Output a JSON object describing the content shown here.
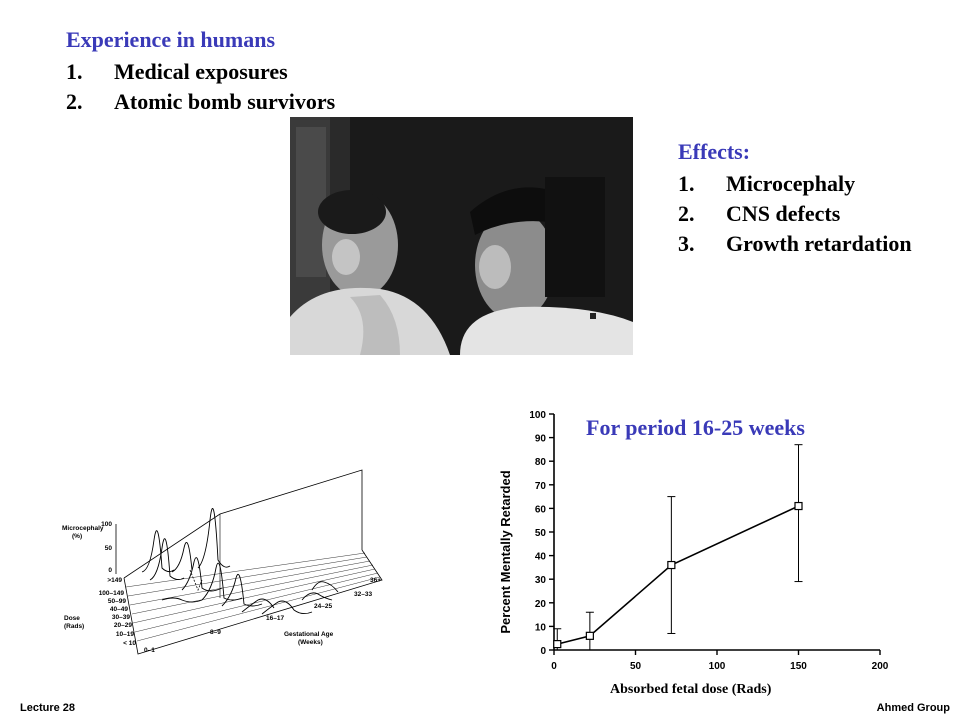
{
  "top": {
    "heading": "Experience in humans",
    "items": [
      {
        "num": "1.",
        "text": "Medical exposures"
      },
      {
        "num": "2.",
        "text": "Atomic bomb survivors"
      }
    ]
  },
  "effects": {
    "heading": "Effects:",
    "items": [
      {
        "num": "1.",
        "text": "Microcephaly"
      },
      {
        "num": "2.",
        "text": "CNS defects"
      },
      {
        "num": "3.",
        "text": "Growth retardation"
      }
    ]
  },
  "plot3d": {
    "z_label_line1": "Microcephaly",
    "z_label_line2": "(%)",
    "z_ticks": [
      "100",
      "50",
      "0"
    ],
    "dose_ticks": [
      ">149",
      "100–149",
      "50–99",
      "40–49",
      "30–39",
      "20–29",
      "10–19",
      "< 10"
    ],
    "dose_label_line1": "Dose",
    "dose_label_line2": "(Rads)",
    "age_ticks": [
      "0–1",
      "8–9",
      "16–17",
      "24–25",
      "32–33",
      "36+"
    ],
    "age_label_line1": "Gestational Age",
    "age_label_line2": "(Weeks)"
  },
  "chart_data": {
    "type": "line",
    "title": "For period 16-25 weeks",
    "xlabel": "Absorbed fetal dose (Rads)",
    "ylabel": "Percent Mentally Retarded",
    "xlim": [
      0,
      200
    ],
    "ylim": [
      0,
      100
    ],
    "xticks": [
      "0",
      "50",
      "100",
      "150",
      "200"
    ],
    "yticks": [
      "0",
      "10",
      "20",
      "30",
      "40",
      "50",
      "60",
      "70",
      "80",
      "90",
      "100"
    ],
    "points": [
      {
        "x": 2,
        "y": 2.5,
        "lo": 0,
        "hi": 9
      },
      {
        "x": 22,
        "y": 6,
        "lo": 0,
        "hi": 16
      },
      {
        "x": 72,
        "y": 36,
        "lo": 7,
        "hi": 65
      },
      {
        "x": 150,
        "y": 61,
        "lo": 29,
        "hi": 87
      }
    ]
  },
  "footer": {
    "left": "Lecture 28",
    "right": "Ahmed Group"
  }
}
